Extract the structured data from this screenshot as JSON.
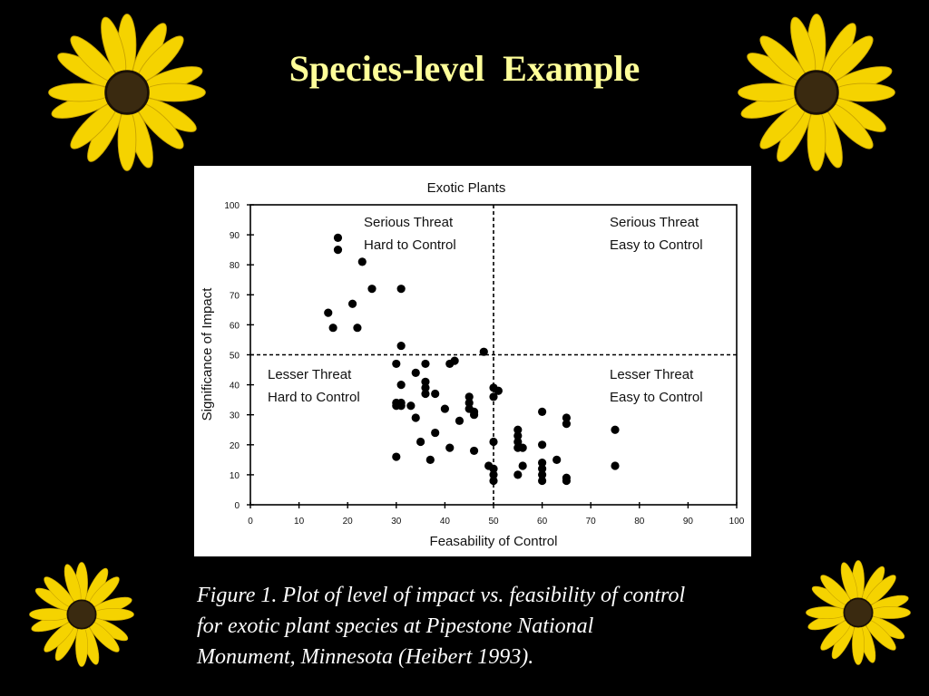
{
  "slide": {
    "title": "Species-level  Example",
    "caption_lines": [
      "Figure 1. Plot of level of impact vs. feasibility of control",
      "for exotic plant species at Pipestone National",
      "Monument, Minnesota (Heibert 1993)."
    ]
  },
  "decorations": {
    "icons": [
      "yellow-daisy-icon"
    ],
    "petal_color": "#f5d300",
    "center_color": "#3a2a10"
  },
  "chart_data": {
    "type": "scatter",
    "title": "Exotic Plants",
    "xlabel": "Feasability of Control",
    "ylabel": "Significance of Impact",
    "xlim": [
      0,
      100
    ],
    "ylim": [
      0,
      100
    ],
    "xticks": [
      0,
      10,
      20,
      30,
      40,
      50,
      60,
      70,
      80,
      90,
      100
    ],
    "yticks": [
      0,
      10,
      20,
      30,
      40,
      50,
      60,
      70,
      80,
      90,
      100
    ],
    "grid": false,
    "dividers": {
      "x": 50,
      "y": 50,
      "style": "dashed"
    },
    "quadrant_labels": [
      {
        "id": "tl",
        "lines": [
          "Serious Threat",
          "Hard to Control"
        ]
      },
      {
        "id": "tr",
        "lines": [
          "Serious Threat",
          "Easy to Control"
        ]
      },
      {
        "id": "bl",
        "lines": [
          "Lesser Threat",
          "Hard to Control"
        ]
      },
      {
        "id": "br",
        "lines": [
          "Lesser Threat",
          "Easy to Control"
        ]
      }
    ],
    "points": [
      [
        18,
        89
      ],
      [
        18,
        85
      ],
      [
        23,
        81
      ],
      [
        25,
        72
      ],
      [
        31,
        72
      ],
      [
        16,
        64
      ],
      [
        21,
        67
      ],
      [
        17,
        59
      ],
      [
        22,
        59
      ],
      [
        31,
        53
      ],
      [
        48,
        51
      ],
      [
        30,
        47
      ],
      [
        36,
        47
      ],
      [
        41,
        47
      ],
      [
        42,
        48
      ],
      [
        34,
        44
      ],
      [
        31,
        40
      ],
      [
        36,
        41
      ],
      [
        36,
        39
      ],
      [
        36,
        37
      ],
      [
        38,
        37
      ],
      [
        30,
        34
      ],
      [
        31,
        34
      ],
      [
        30,
        33
      ],
      [
        31,
        33
      ],
      [
        33,
        33
      ],
      [
        34,
        29
      ],
      [
        40,
        32
      ],
      [
        43,
        28
      ],
      [
        45,
        36
      ],
      [
        45,
        34
      ],
      [
        45,
        32
      ],
      [
        46,
        31
      ],
      [
        46,
        30
      ],
      [
        50,
        39
      ],
      [
        51,
        38
      ],
      [
        50,
        36
      ],
      [
        35,
        21
      ],
      [
        38,
        24
      ],
      [
        41,
        19
      ],
      [
        46,
        18
      ],
      [
        30,
        16
      ],
      [
        37,
        15
      ],
      [
        50,
        21
      ],
      [
        49,
        13
      ],
      [
        50,
        12
      ],
      [
        50,
        10
      ],
      [
        50,
        8
      ],
      [
        55,
        25
      ],
      [
        55,
        23
      ],
      [
        55,
        21
      ],
      [
        55,
        19
      ],
      [
        56,
        19
      ],
      [
        55,
        10
      ],
      [
        56,
        13
      ],
      [
        60,
        31
      ],
      [
        60,
        20
      ],
      [
        60,
        14
      ],
      [
        60,
        12
      ],
      [
        60,
        10
      ],
      [
        60,
        8
      ],
      [
        63,
        15
      ],
      [
        65,
        29
      ],
      [
        65,
        27
      ],
      [
        65,
        9
      ],
      [
        65,
        8
      ],
      [
        75,
        25
      ],
      [
        75,
        13
      ]
    ]
  }
}
